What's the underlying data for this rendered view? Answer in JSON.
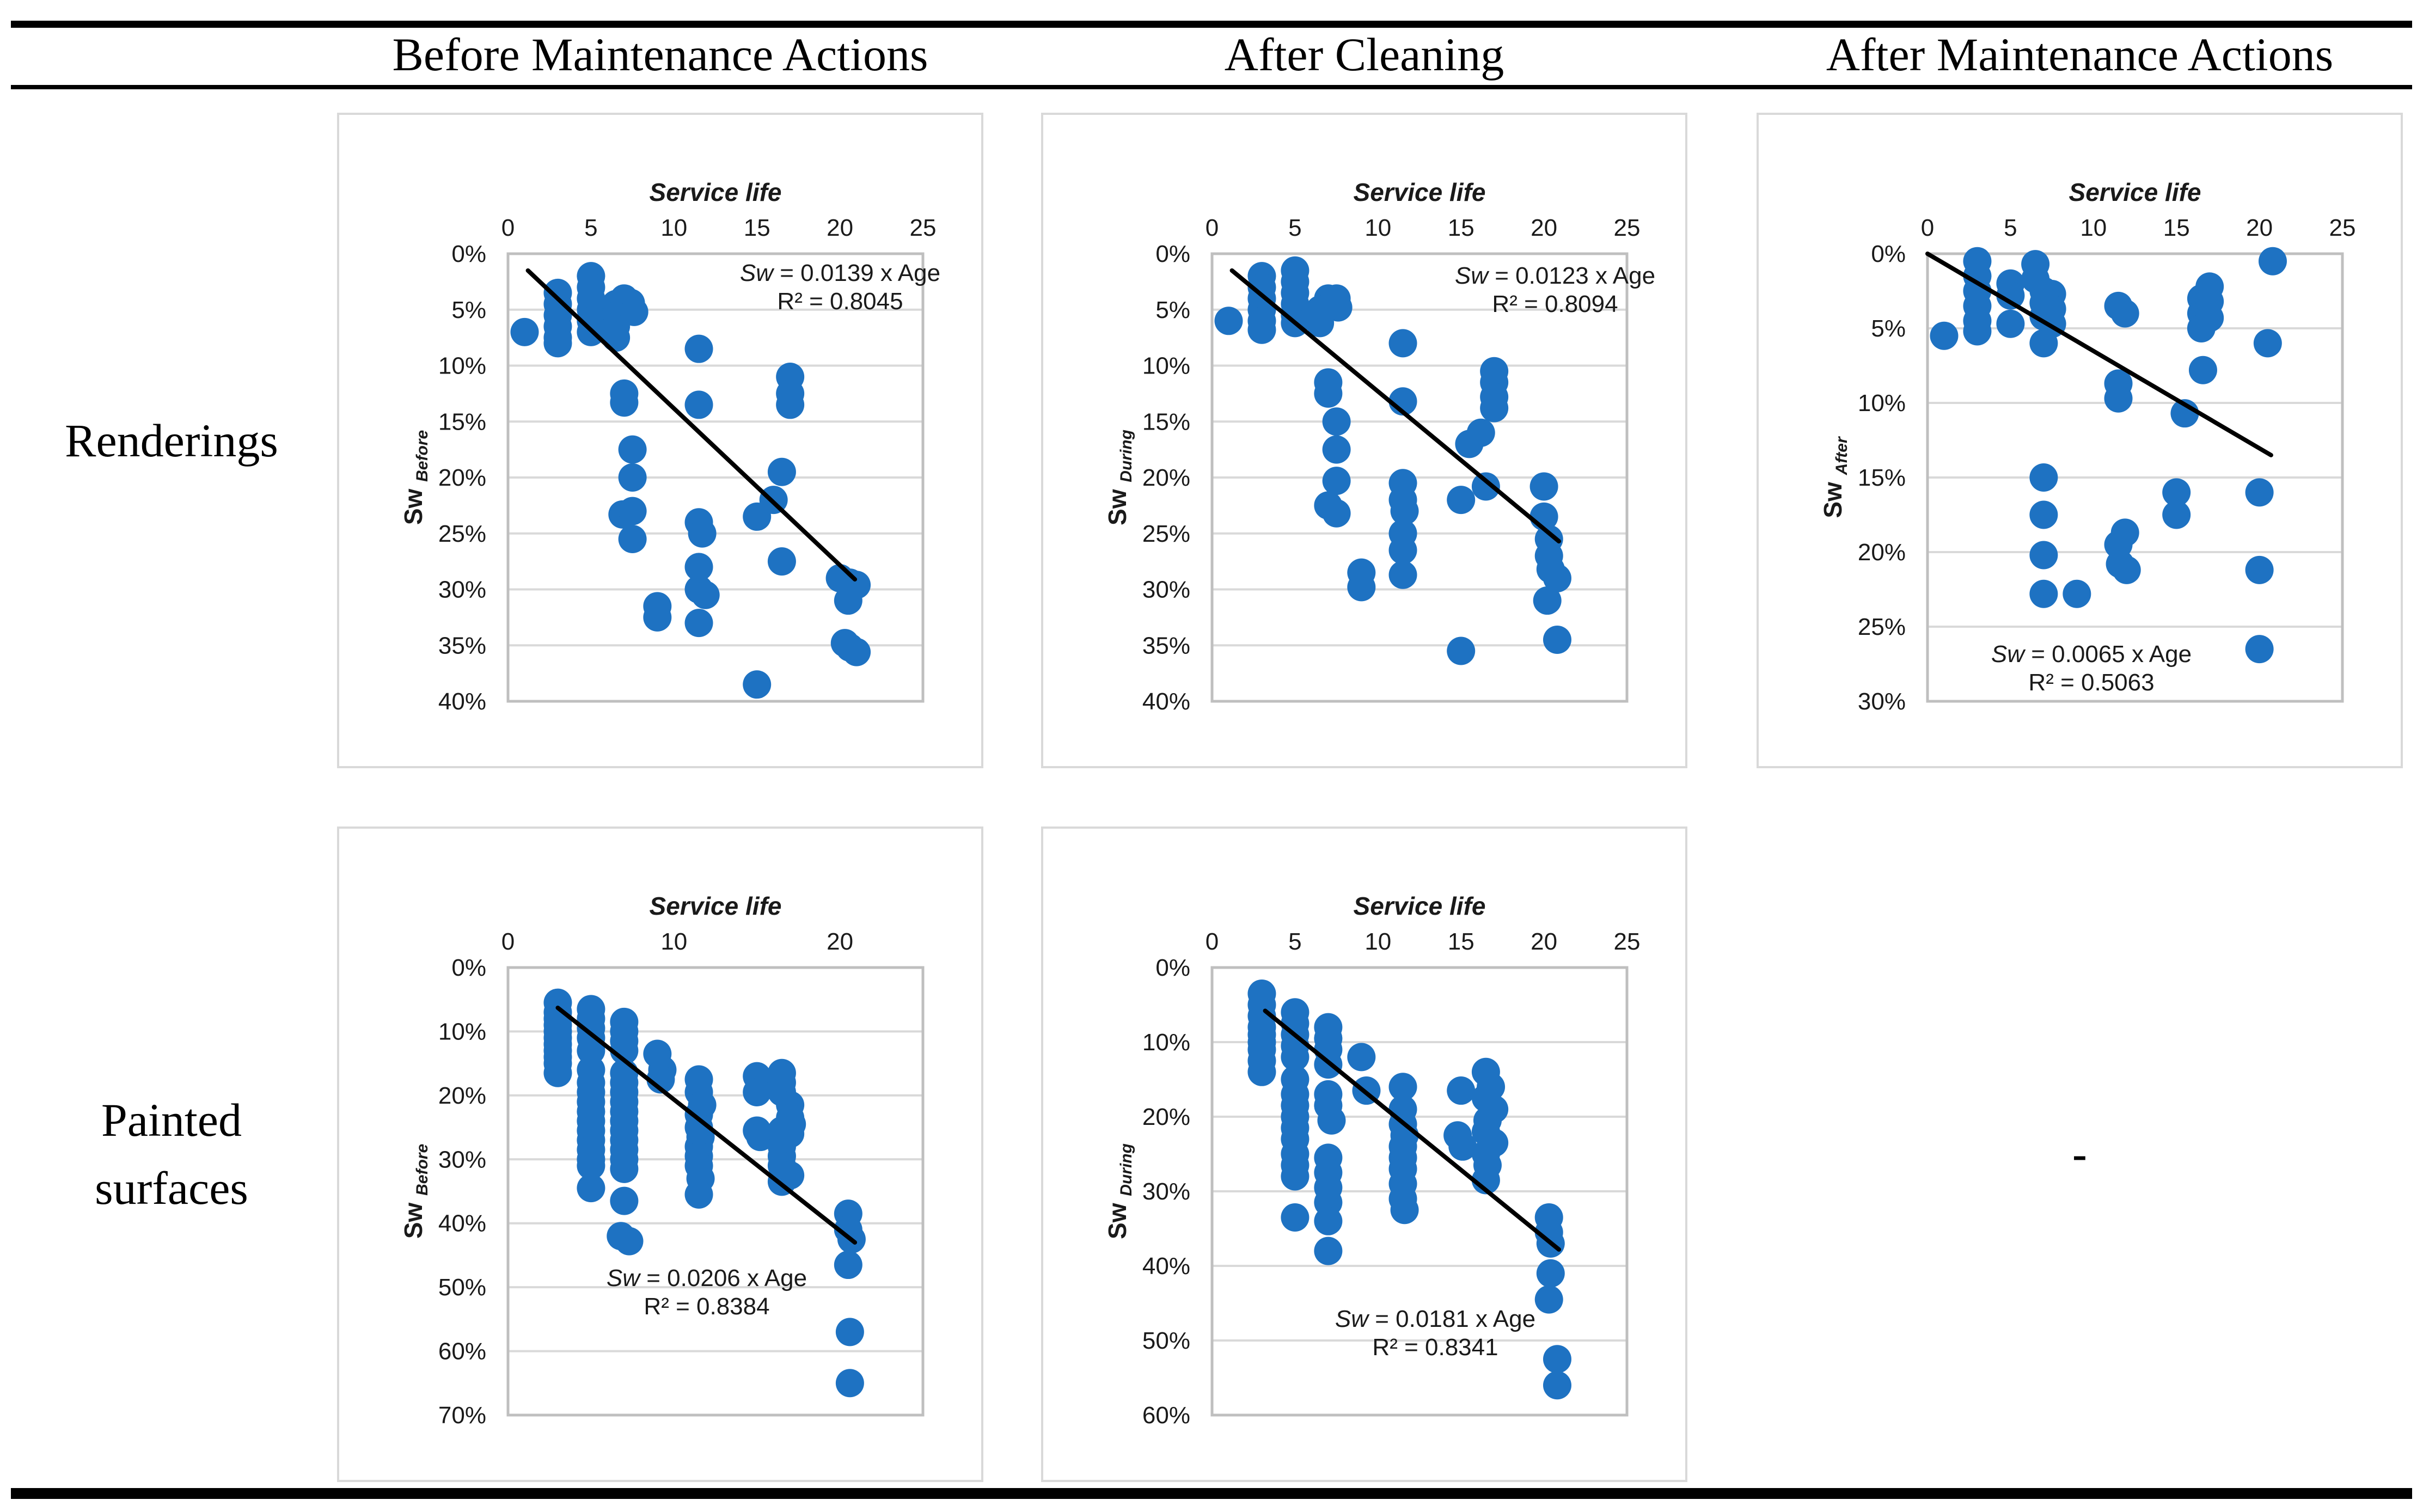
{
  "header": {
    "cols": [
      "Before Maintenance Actions",
      "After Cleaning",
      "After Maintenance Actions"
    ]
  },
  "row_labels": [
    {
      "lines": [
        "Renderings"
      ]
    },
    {
      "lines": [
        "Painted",
        "surfaces"
      ]
    }
  ],
  "empty_cell_dash": "-",
  "colors": {
    "dot": "#1E72C2",
    "trend": "#000000",
    "grid": "#D9D9D9",
    "plot_border": "#BFBFBF",
    "cell_border": "#D9D9D9",
    "text": "#1A1A1A"
  },
  "chart_data": [
    {
      "id": "renderings-before",
      "type": "scatter",
      "row": "Renderings",
      "col": "Before Maintenance Actions",
      "title": "Service life",
      "ylabel_main": "Sw",
      "ylabel_sub": "Before",
      "xmax": 25,
      "xticks": [
        0,
        5,
        10,
        15,
        20,
        25
      ],
      "ymax": 40,
      "yticks": [
        0,
        5,
        10,
        15,
        20,
        25,
        30,
        35,
        40
      ],
      "eq_var": "Sw",
      "eq_rest": " = 0.0139 x Age",
      "eq_r2": "R² = 0.8045",
      "eq_x": 920,
      "eq_y": 305,
      "trend": [
        1.2,
        1.5,
        20.9,
        29.1
      ],
      "points": [
        [
          1,
          7
        ],
        [
          3,
          3.5
        ],
        [
          3,
          4.5
        ],
        [
          3,
          5.5
        ],
        [
          3,
          6.5
        ],
        [
          3,
          7.5
        ],
        [
          3,
          8
        ],
        [
          5,
          2
        ],
        [
          5,
          3
        ],
        [
          5,
          4
        ],
        [
          5,
          5
        ],
        [
          5,
          6
        ],
        [
          5,
          7
        ],
        [
          6.5,
          4.5
        ],
        [
          6.5,
          5.5
        ],
        [
          6.5,
          6.5
        ],
        [
          6.5,
          7.5
        ],
        [
          7,
          4
        ],
        [
          7,
          5
        ],
        [
          7.4,
          4.4
        ],
        [
          7.6,
          5.2
        ],
        [
          7,
          12.5
        ],
        [
          7,
          13.3
        ],
        [
          7.5,
          17.5
        ],
        [
          7.5,
          20
        ],
        [
          6.9,
          23.3
        ],
        [
          7.5,
          23
        ],
        [
          7.5,
          25.5
        ],
        [
          9,
          31.5
        ],
        [
          9,
          32.5
        ],
        [
          11.5,
          8.5
        ],
        [
          11.5,
          13.5
        ],
        [
          11.5,
          24
        ],
        [
          11.7,
          25
        ],
        [
          11.5,
          28
        ],
        [
          11.5,
          30
        ],
        [
          11.9,
          30.5
        ],
        [
          11.5,
          33
        ],
        [
          15,
          23.5
        ],
        [
          15,
          38.5
        ],
        [
          16,
          22
        ],
        [
          16.5,
          19.5
        ],
        [
          16.5,
          27.5
        ],
        [
          17,
          11
        ],
        [
          17,
          12.5
        ],
        [
          17,
          13.5
        ],
        [
          20,
          29
        ],
        [
          20.6,
          29.4
        ],
        [
          21,
          29.6
        ],
        [
          20.5,
          31
        ],
        [
          20.3,
          34.8
        ],
        [
          20.6,
          35.2
        ],
        [
          21,
          35.6
        ]
      ]
    },
    {
      "id": "renderings-during",
      "type": "scatter",
      "row": "Renderings",
      "col": "After Cleaning",
      "title": "Service life",
      "ylabel_main": "Sw",
      "ylabel_sub": "During",
      "xmax": 25,
      "xticks": [
        0,
        5,
        10,
        15,
        20,
        25
      ],
      "ymax": 40,
      "yticks": [
        0,
        5,
        10,
        15,
        20,
        25,
        30,
        35,
        40
      ],
      "eq_var": "Sw",
      "eq_rest": " = 0.0123 x Age",
      "eq_r2": "R² = 0.8094",
      "eq_x": 940,
      "eq_y": 310,
      "trend": [
        1.2,
        1.5,
        20.9,
        25.7
      ],
      "points": [
        [
          1,
          6
        ],
        [
          3,
          2
        ],
        [
          3,
          3
        ],
        [
          3,
          4
        ],
        [
          3,
          5
        ],
        [
          3,
          6
        ],
        [
          3,
          6.8
        ],
        [
          5,
          1.5
        ],
        [
          5,
          2.5
        ],
        [
          5,
          3.5
        ],
        [
          5,
          4.5
        ],
        [
          5,
          5.5
        ],
        [
          5,
          6.2
        ],
        [
          6.5,
          5
        ],
        [
          6.5,
          6.2
        ],
        [
          7,
          4
        ],
        [
          7,
          4.8
        ],
        [
          7.5,
          4
        ],
        [
          7.6,
          4.8
        ],
        [
          7,
          11.5
        ],
        [
          7,
          12.5
        ],
        [
          7.5,
          15
        ],
        [
          7.5,
          17.5
        ],
        [
          7.5,
          20.3
        ],
        [
          7,
          22.5
        ],
        [
          7.5,
          23.2
        ],
        [
          9,
          28.5
        ],
        [
          9,
          29.8
        ],
        [
          11.5,
          8
        ],
        [
          11.5,
          13.2
        ],
        [
          11.5,
          20.5
        ],
        [
          11.5,
          22
        ],
        [
          11.6,
          23
        ],
        [
          11.5,
          25
        ],
        [
          11.5,
          26.5
        ],
        [
          11.5,
          28.7
        ],
        [
          15,
          22
        ],
        [
          15,
          35.5
        ],
        [
          15.5,
          17
        ],
        [
          16.2,
          16
        ],
        [
          16.5,
          20.8
        ],
        [
          17,
          10.5
        ],
        [
          17,
          11.5
        ],
        [
          17,
          12.8
        ],
        [
          17,
          13.8
        ],
        [
          20,
          20.8
        ],
        [
          20,
          23.5
        ],
        [
          20.3,
          25.5
        ],
        [
          20.3,
          27
        ],
        [
          20.4,
          28.2
        ],
        [
          20.8,
          29
        ],
        [
          20.2,
          31
        ],
        [
          20.8,
          34.5
        ]
      ]
    },
    {
      "id": "renderings-after",
      "type": "scatter",
      "row": "Renderings",
      "col": "After Maintenance Actions",
      "title": "Service life",
      "ylabel_main": "Sw",
      "ylabel_sub": "After",
      "xmax": 25,
      "xticks": [
        0,
        5,
        10,
        15,
        20,
        25
      ],
      "ymax": 30,
      "yticks": [
        0,
        5,
        10,
        15,
        20,
        25,
        30
      ],
      "eq_var": "Sw",
      "eq_rest": " = 0.0065 x Age",
      "eq_r2": "R² = 0.5063",
      "eq_x": 611,
      "eq_y": 1005,
      "trend": [
        0,
        0,
        20.7,
        13.5
      ],
      "points": [
        [
          1,
          5.5
        ],
        [
          3,
          0.5
        ],
        [
          3,
          1.5
        ],
        [
          3,
          2.5
        ],
        [
          3,
          3.5
        ],
        [
          3,
          4.5
        ],
        [
          3,
          5.2
        ],
        [
          5,
          2
        ],
        [
          5,
          2.8
        ],
        [
          5,
          4.7
        ],
        [
          6.5,
          0.7
        ],
        [
          6.5,
          1.7
        ],
        [
          7,
          2.5
        ],
        [
          7,
          3.3
        ],
        [
          7,
          4.2
        ],
        [
          7.5,
          2.7
        ],
        [
          7.5,
          3.7
        ],
        [
          7.5,
          4.7
        ],
        [
          7,
          6
        ],
        [
          7,
          15
        ],
        [
          7,
          17.5
        ],
        [
          7,
          20.2
        ],
        [
          7,
          22.8
        ],
        [
          9,
          22.8
        ],
        [
          11.5,
          3.5
        ],
        [
          11.9,
          4
        ],
        [
          11.5,
          8.7
        ],
        [
          11.5,
          9.7
        ],
        [
          11.5,
          19.5
        ],
        [
          11.6,
          20.8
        ],
        [
          11.9,
          18.7
        ],
        [
          12,
          21.2
        ],
        [
          15,
          16
        ],
        [
          15,
          17.5
        ],
        [
          15.5,
          10.7
        ],
        [
          16.5,
          3
        ],
        [
          16.5,
          4
        ],
        [
          16.5,
          5
        ],
        [
          17,
          2.2
        ],
        [
          17,
          3.2
        ],
        [
          17,
          4.3
        ],
        [
          16.6,
          7.8
        ],
        [
          20,
          16
        ],
        [
          20,
          21.2
        ],
        [
          20,
          26.5
        ],
        [
          20.5,
          6
        ],
        [
          20.8,
          0.5
        ]
      ]
    },
    {
      "id": "painted-before",
      "type": "scatter",
      "row": "Painted surfaces",
      "col": "Before Maintenance Actions",
      "title": "Service life",
      "ylabel_main": "Sw",
      "ylabel_sub": "Before",
      "xmax": 25,
      "xticks": [
        0,
        10,
        20
      ],
      "ymax": 70,
      "yticks": [
        0,
        10,
        20,
        30,
        40,
        50,
        60,
        70
      ],
      "eq_var": "Sw",
      "eq_rest": " = 0.0206 x Age",
      "eq_r2": "R² = 0.8384",
      "eq_x": 675,
      "eq_y": 840,
      "trend": [
        3,
        6.3,
        20.9,
        43
      ],
      "points": [
        [
          3,
          5.5
        ],
        [
          3,
          7
        ],
        [
          3,
          8
        ],
        [
          3,
          9
        ],
        [
          3,
          10
        ],
        [
          3,
          11
        ],
        [
          3,
          12
        ],
        [
          3,
          13
        ],
        [
          3,
          14
        ],
        [
          3,
          15
        ],
        [
          3,
          16.5
        ],
        [
          5,
          6.5
        ],
        [
          5,
          8
        ],
        [
          5,
          9.5
        ],
        [
          5,
          11
        ],
        [
          5,
          13
        ],
        [
          5,
          16
        ],
        [
          5,
          18
        ],
        [
          5,
          19.5
        ],
        [
          5,
          21
        ],
        [
          5,
          22.5
        ],
        [
          5,
          24
        ],
        [
          5,
          25.5
        ],
        [
          5,
          27
        ],
        [
          5,
          28.5
        ],
        [
          5,
          30
        ],
        [
          5,
          31
        ],
        [
          5,
          34.5
        ],
        [
          7,
          8.5
        ],
        [
          7,
          10
        ],
        [
          7,
          11.5
        ],
        [
          7,
          13
        ],
        [
          7,
          16.5
        ],
        [
          7,
          18
        ],
        [
          7,
          19.5
        ],
        [
          7,
          21
        ],
        [
          7,
          22.5
        ],
        [
          7,
          24
        ],
        [
          7,
          25.5
        ],
        [
          7,
          27
        ],
        [
          7,
          28.5
        ],
        [
          7,
          30
        ],
        [
          7,
          31.5
        ],
        [
          7,
          36.5
        ],
        [
          6.8,
          42
        ],
        [
          7.3,
          42.8
        ],
        [
          9,
          13.5
        ],
        [
          9.3,
          16
        ],
        [
          9.2,
          17.5
        ],
        [
          11.5,
          17.5
        ],
        [
          11.5,
          19.5
        ],
        [
          11.7,
          21.5
        ],
        [
          11.5,
          23
        ],
        [
          11.5,
          25
        ],
        [
          11.6,
          26.5
        ],
        [
          11.5,
          28
        ],
        [
          11.5,
          29.5
        ],
        [
          11.5,
          31
        ],
        [
          11.6,
          33
        ],
        [
          11.5,
          35.5
        ],
        [
          15,
          17
        ],
        [
          15,
          19.5
        ],
        [
          15,
          25.5
        ],
        [
          15.2,
          26.5
        ],
        [
          16.5,
          16.5
        ],
        [
          16.5,
          18
        ],
        [
          16.5,
          19.5
        ],
        [
          16.5,
          25.5
        ],
        [
          16.6,
          26.5
        ],
        [
          16.5,
          28
        ],
        [
          16.5,
          29.5
        ],
        [
          16.5,
          31
        ],
        [
          16.5,
          33.5
        ],
        [
          17,
          21.5
        ],
        [
          17,
          23.5
        ],
        [
          17.1,
          24.5
        ],
        [
          17,
          26
        ],
        [
          17,
          32.5
        ],
        [
          20.5,
          38.5
        ],
        [
          20.5,
          41
        ],
        [
          20.7,
          42.5
        ],
        [
          20.5,
          46.5
        ],
        [
          20.6,
          57
        ],
        [
          20.6,
          65
        ]
      ]
    },
    {
      "id": "painted-during",
      "type": "scatter",
      "row": "Painted surfaces",
      "col": "After Cleaning",
      "title": "Service life",
      "ylabel_main": "Sw",
      "ylabel_sub": "During",
      "xmax": 25,
      "xticks": [
        0,
        5,
        10,
        15,
        20,
        25
      ],
      "ymax": 60,
      "yticks": [
        0,
        10,
        20,
        30,
        40,
        50,
        60
      ],
      "eq_var": "Sw",
      "eq_rest": " = 0.0181 x Age",
      "eq_r2": "R² = 0.8341",
      "eq_x": 720,
      "eq_y": 915,
      "trend": [
        3.2,
        5.8,
        20.9,
        37.8
      ],
      "points": [
        [
          3,
          3.5
        ],
        [
          3,
          5
        ],
        [
          3,
          6.5
        ],
        [
          3,
          8
        ],
        [
          3,
          9
        ],
        [
          3,
          10
        ],
        [
          3,
          11
        ],
        [
          3,
          12.5
        ],
        [
          3,
          14
        ],
        [
          5,
          6
        ],
        [
          5,
          7.5
        ],
        [
          5,
          9
        ],
        [
          5,
          10.5
        ],
        [
          5,
          12
        ],
        [
          5,
          15
        ],
        [
          5,
          17
        ],
        [
          5,
          18.5
        ],
        [
          5,
          20
        ],
        [
          5,
          21.5
        ],
        [
          5,
          23
        ],
        [
          5,
          25
        ],
        [
          5,
          26.5
        ],
        [
          5,
          28
        ],
        [
          5,
          33.5
        ],
        [
          7,
          8
        ],
        [
          7,
          9.5
        ],
        [
          7,
          11
        ],
        [
          7,
          13
        ],
        [
          7,
          17
        ],
        [
          7,
          18.5
        ],
        [
          7.2,
          20.5
        ],
        [
          7,
          25.5
        ],
        [
          7,
          27.5
        ],
        [
          7,
          29.5
        ],
        [
          7,
          31.5
        ],
        [
          7,
          34
        ],
        [
          7,
          38
        ],
        [
          9,
          12
        ],
        [
          9.3,
          16.5
        ],
        [
          11.5,
          16
        ],
        [
          11.5,
          19
        ],
        [
          11.5,
          21
        ],
        [
          11.6,
          22.5
        ],
        [
          11.5,
          24
        ],
        [
          11.5,
          25.5
        ],
        [
          11.5,
          27
        ],
        [
          11.5,
          29
        ],
        [
          11.5,
          31
        ],
        [
          11.6,
          32.5
        ],
        [
          15,
          16.5
        ],
        [
          14.8,
          22.5
        ],
        [
          15.1,
          24
        ],
        [
          16.5,
          14
        ],
        [
          16.8,
          16
        ],
        [
          16.5,
          17.5
        ],
        [
          17,
          19
        ],
        [
          16.6,
          20.5
        ],
        [
          16.5,
          22
        ],
        [
          17,
          23.5
        ],
        [
          16.5,
          25
        ],
        [
          16.6,
          26.5
        ],
        [
          16.5,
          28.5
        ],
        [
          20.3,
          33.5
        ],
        [
          20.3,
          35.5
        ],
        [
          20.4,
          37
        ],
        [
          20.4,
          41
        ],
        [
          20.3,
          44.5
        ],
        [
          20.8,
          52.5
        ],
        [
          20.8,
          56
        ]
      ]
    }
  ]
}
